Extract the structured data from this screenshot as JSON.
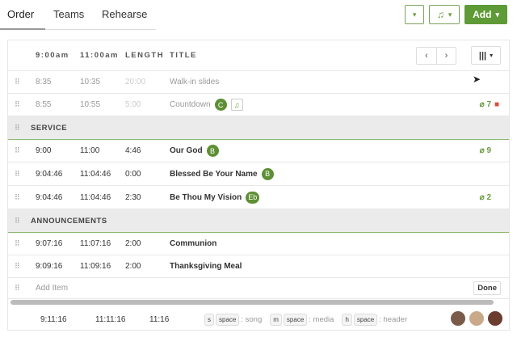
{
  "tabs": [
    {
      "label": "Order",
      "active": true
    },
    {
      "label": "Teams"
    },
    {
      "label": "Rehearse"
    }
  ],
  "toolbar": {
    "dropdown_icon": "caret-down-icon",
    "music_icon": "music-note-icon",
    "add_label": "Add"
  },
  "header": {
    "time1": "9:00am",
    "time2": "11:00am",
    "length": "LENGTH",
    "title": "TITLE"
  },
  "items": [
    {
      "t1": "8:35",
      "t2": "10:35",
      "length": "20:00",
      "title": "Walk-in slides"
    },
    {
      "t1": "8:55",
      "t2": "10:55",
      "length": "5:00",
      "title": "Countdown",
      "key": "C",
      "attachments": "7"
    },
    {
      "section": "SERVICE"
    },
    {
      "t1": "9:00",
      "t2": "11:00",
      "length": "4:46",
      "title": "Our God",
      "key": "B",
      "attachments": "9"
    },
    {
      "t1": "9:04:46",
      "t2": "11:04:46",
      "length": "0:00",
      "title": "Blessed Be Your Name",
      "key": "B"
    },
    {
      "t1": "9:04:46",
      "t2": "11:04:46",
      "length": "2:30",
      "title": "Be Thou My Vision",
      "key": "Eb",
      "attachments": "2"
    },
    {
      "section": "ANNOUNCEMENTS"
    },
    {
      "t1": "9:07:16",
      "t2": "11:07:16",
      "length": "2:00",
      "title": "Communion"
    },
    {
      "t1": "9:09:16",
      "t2": "11:09:16",
      "length": "2:00",
      "title": "Thanksgiving Meal"
    }
  ],
  "add_item": {
    "placeholder": "Add Item",
    "done_label": "Done"
  },
  "footer": {
    "t1": "9:11:16",
    "t2": "11:11:16",
    "length": "11:16",
    "hints": [
      {
        "key": "s",
        "space": "space",
        "label": ": song"
      },
      {
        "key": "m",
        "space": "space",
        "label": ": media"
      },
      {
        "key": "h",
        "space": "space",
        "label": ": header"
      }
    ]
  },
  "colors": {
    "accent": "#5e9a36",
    "delete": "#e04b3c"
  }
}
